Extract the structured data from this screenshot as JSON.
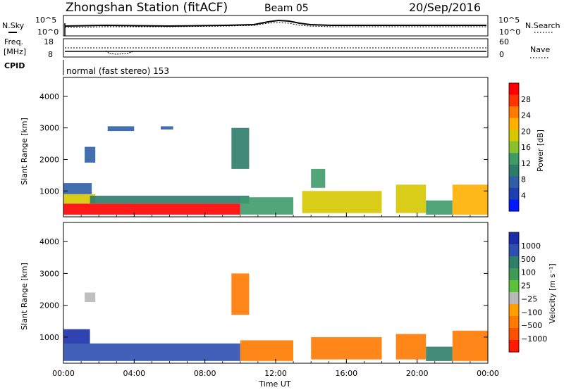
{
  "header": {
    "station": "Zhongshan Station (fitACF)",
    "beam": "Beam 05",
    "date": "20/Sep/2016"
  },
  "summary_panels": {
    "nsky_label": "N.Sky",
    "nsearch_label": "N.Search",
    "freq_label_1": "Freq.",
    "freq_label_2": "[MHz]",
    "nave_label": "Nave",
    "cpid_label": "CPID",
    "cpid_text": "normal (fast stereo) 153",
    "noise_ticks": [
      "10^5",
      "10^0"
    ],
    "freq_ticks": [
      "18",
      "8"
    ],
    "nave_ticks": [
      "60",
      "0"
    ]
  },
  "chart_data": [
    {
      "type": "heatmap",
      "name": "power",
      "ylabel": "Slant Range [km]",
      "colorbar_label": "Power [dB]",
      "colorbar_ticks": [
        "28",
        "24",
        "20",
        "16",
        "12",
        "8",
        "4"
      ],
      "colorbar_colors": [
        "#ff0000",
        "#ff3300",
        "#ff7a00",
        "#ffb000",
        "#d6c800",
        "#8ac02e",
        "#3f9a6a",
        "#2d7c6a",
        "#2f5ea6",
        "#1d3fb0",
        "#0018ff"
      ],
      "ylim": [
        180,
        4600
      ],
      "yticks": [
        1000,
        2000,
        3000,
        4000
      ],
      "xlim": [
        0,
        24
      ],
      "x_tick_labels": [
        "00:00",
        "04:00",
        "08:00",
        "12:00",
        "16:00",
        "20:00",
        "00:00"
      ],
      "blocks": [
        {
          "t": [
            0.0,
            10.0
          ],
          "r": [
            250,
            600
          ],
          "v": 27
        },
        {
          "t": [
            0.0,
            1.8
          ],
          "r": [
            600,
            900
          ],
          "v": 16
        },
        {
          "t": [
            0.0,
            1.6
          ],
          "r": [
            900,
            1250
          ],
          "v": 8
        },
        {
          "t": [
            1.2,
            1.8
          ],
          "r": [
            1900,
            2400
          ],
          "v": 8
        },
        {
          "t": [
            1.5,
            10.5
          ],
          "r": [
            600,
            850
          ],
          "v": 11
        },
        {
          "t": [
            2.5,
            4.0
          ],
          "r": [
            2900,
            3050
          ],
          "v": 8
        },
        {
          "t": [
            5.5,
            6.2
          ],
          "r": [
            2950,
            3050
          ],
          "v": 8
        },
        {
          "t": [
            9.5,
            10.5
          ],
          "r": [
            1700,
            3000
          ],
          "v": 10
        },
        {
          "t": [
            10.0,
            13.0
          ],
          "r": [
            250,
            800
          ],
          "v": 12
        },
        {
          "t": [
            14.0,
            14.8
          ],
          "r": [
            1100,
            1700
          ],
          "v": 14
        },
        {
          "t": [
            13.5,
            18.0
          ],
          "r": [
            300,
            1000
          ],
          "v": 15
        },
        {
          "t": [
            18.8,
            20.5
          ],
          "r": [
            300,
            1200
          ],
          "v": 17
        },
        {
          "t": [
            20.5,
            22.0
          ],
          "r": [
            250,
            700
          ],
          "v": 12
        },
        {
          "t": [
            22.0,
            24.0
          ],
          "r": [
            250,
            1200
          ],
          "v": 19
        }
      ]
    },
    {
      "type": "heatmap",
      "name": "velocity",
      "ylabel": "Slant Range [km]",
      "colorbar_label": "Velocity [m s⁻¹]",
      "colorbar_ticks": [
        "1000",
        "500",
        "100",
        "25",
        "−25",
        "−100",
        "−500",
        "−1000"
      ],
      "colorbar_colors": [
        "#1b2da8",
        "#2e4fb0",
        "#2f7e6a",
        "#3f9a54",
        "#5cc23a",
        "#b8b8b8",
        "#ffa000",
        "#ff7a00",
        "#ff5000",
        "#ff1a00"
      ],
      "ylim": [
        180,
        4600
      ],
      "yticks": [
        1000,
        2000,
        3000,
        4000
      ],
      "xlim": [
        0,
        24
      ],
      "x_tick_labels": [
        "00:00",
        "04:00",
        "08:00",
        "12:00",
        "16:00",
        "20:00",
        "00:00"
      ],
      "xlabel": "Time UT",
      "blocks": [
        {
          "t": [
            0.0,
            10.0
          ],
          "r": [
            250,
            800
          ],
          "v": 350
        },
        {
          "t": [
            0.0,
            1.5
          ],
          "r": [
            800,
            1250
          ],
          "v": 700
        },
        {
          "t": [
            1.2,
            1.8
          ],
          "r": [
            2100,
            2400
          ],
          "v": 0
        },
        {
          "t": [
            9.5,
            10.5
          ],
          "r": [
            1700,
            3000
          ],
          "v": -400
        },
        {
          "t": [
            10.0,
            13.0
          ],
          "r": [
            250,
            900
          ],
          "v": -300
        },
        {
          "t": [
            14.0,
            18.0
          ],
          "r": [
            300,
            1000
          ],
          "v": -350
        },
        {
          "t": [
            18.8,
            20.5
          ],
          "r": [
            300,
            1100
          ],
          "v": -300
        },
        {
          "t": [
            20.5,
            22.0
          ],
          "r": [
            250,
            700
          ],
          "v": 200
        },
        {
          "t": [
            22.0,
            24.0
          ],
          "r": [
            250,
            1200
          ],
          "v": -150
        }
      ]
    }
  ]
}
